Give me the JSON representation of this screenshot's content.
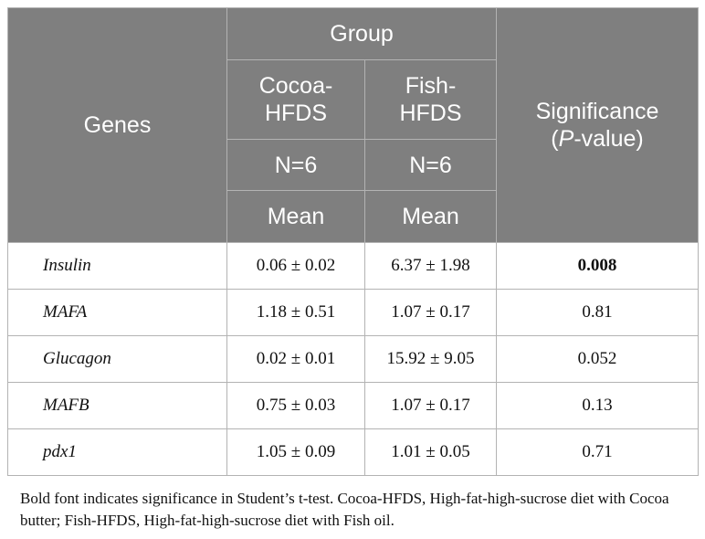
{
  "header": {
    "genes": "Genes",
    "group": "Group",
    "col_a_name": "Cocoa-\nHFDS",
    "col_b_name": "Fish-\nHFDS",
    "col_a_n": "N=6",
    "col_b_n": "N=6",
    "col_a_stat": "Mean",
    "col_b_stat": "Mean",
    "significance_line1": "Significance",
    "significance_open": "(",
    "significance_p": "P",
    "significance_close": "-value)"
  },
  "rows": [
    {
      "gene": "Insulin",
      "cocoa": "0.06 ± 0.02",
      "fish": "6.37 ± 1.98",
      "p": "0.008",
      "bold": true
    },
    {
      "gene": "MAFA",
      "cocoa": "1.18 ± 0.51",
      "fish": "1.07 ± 0.17",
      "p": "0.81",
      "bold": false
    },
    {
      "gene": "Glucagon",
      "cocoa": "0.02 ± 0.01",
      "fish": "15.92 ± 9.05",
      "p": "0.052",
      "bold": false
    },
    {
      "gene": "MAFB",
      "cocoa": "0.75 ± 0.03",
      "fish": "1.07 ± 0.17",
      "p": "0.13",
      "bold": false
    },
    {
      "gene": "pdx1",
      "cocoa": "1.05 ± 0.09",
      "fish": "1.01 ± 0.05",
      "p": "0.71",
      "bold": false
    }
  ],
  "footnote": "Bold font indicates significance in Student’s t-test. Cocoa-HFDS, High-fat-high-sucrose diet with Cocoa butter; Fish-HFDS, High-fat-high-sucrose diet with Fish oil.",
  "colors": {
    "header_bg": "#7f7f7f",
    "header_text": "#ffffff",
    "border": "#b3b3b3"
  }
}
